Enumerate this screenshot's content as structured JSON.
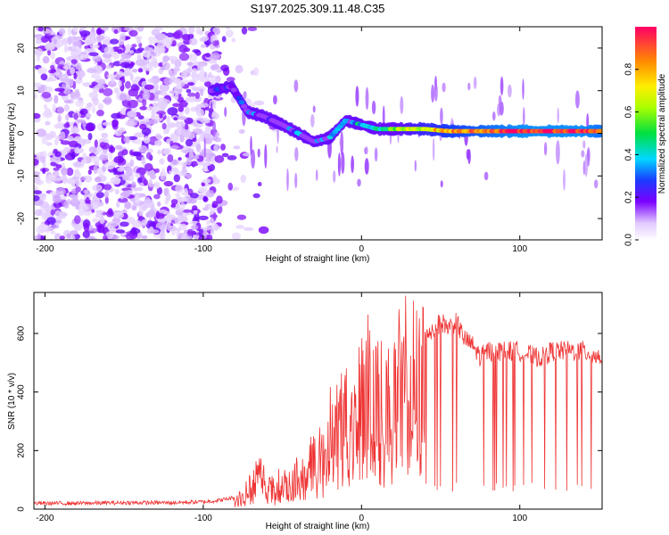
{
  "title": "S197.2025.309.11.48.C35",
  "chart_data": [
    {
      "type": "heatmap",
      "xlabel": "Height of straight line (km)",
      "ylabel": "Frequency (Hz)",
      "xlim": [
        -207,
        152
      ],
      "ylim": [
        -25,
        25
      ],
      "xticks": [
        -200,
        -100,
        0,
        100
      ],
      "yticks": [
        -20,
        -10,
        0,
        10,
        20
      ],
      "colorbar": {
        "label": "Normalized spectral amplitude",
        "range": [
          0.0,
          1.0
        ],
        "ticks": [
          0.0,
          0.2,
          0.4,
          0.6,
          0.8
        ]
      },
      "ridge": [
        {
          "x": -95,
          "freq": 10,
          "amp": 0.2
        },
        {
          "x": -82,
          "freq": 11,
          "amp": 0.25
        },
        {
          "x": -72,
          "freq": 5,
          "amp": 0.15
        },
        {
          "x": -62,
          "freq": 4,
          "amp": 0.2
        },
        {
          "x": -50,
          "freq": 2,
          "amp": 0.15
        },
        {
          "x": -40,
          "freq": 0,
          "amp": 0.2
        },
        {
          "x": -30,
          "freq": -2,
          "amp": 0.2
        },
        {
          "x": -20,
          "freq": -1,
          "amp": 0.25
        },
        {
          "x": -10,
          "freq": 3,
          "amp": 0.35
        },
        {
          "x": 0,
          "freq": 2,
          "amp": 0.3
        },
        {
          "x": 10,
          "freq": 1,
          "amp": 0.4
        },
        {
          "x": 25,
          "freq": 1,
          "amp": 0.6
        },
        {
          "x": 40,
          "freq": 1,
          "amp": 0.7
        },
        {
          "x": 55,
          "freq": 0.5,
          "amp": 0.8
        },
        {
          "x": 70,
          "freq": 0.5,
          "amp": 0.85
        },
        {
          "x": 85,
          "freq": 0.5,
          "amp": 0.9
        },
        {
          "x": 100,
          "freq": 0.5,
          "amp": 0.95
        },
        {
          "x": 120,
          "freq": 0.5,
          "amp": 0.95
        },
        {
          "x": 140,
          "freq": 0.5,
          "amp": 0.95
        },
        {
          "x": 150,
          "freq": 0.5,
          "amp": 0.9
        }
      ]
    },
    {
      "type": "line",
      "xlabel": "Height of straight line (km)",
      "ylabel": "SNR (10 * v/v)",
      "xlim": [
        -207,
        152
      ],
      "ylim": [
        0,
        740
      ],
      "xticks": [
        -200,
        -100,
        0,
        100
      ],
      "yticks": [
        0,
        200,
        400,
        600
      ],
      "series": [
        {
          "name": "SNR",
          "color": "#ee3333",
          "x": [
            -207,
            -180,
            -150,
            -120,
            -100,
            -90,
            -80,
            -75,
            -70,
            -65,
            -60,
            -55,
            -50,
            -45,
            -40,
            -35,
            -30,
            -25,
            -20,
            -18,
            -15,
            -12,
            -10,
            -5,
            0,
            5,
            10,
            15,
            20,
            25,
            30,
            35,
            40,
            45,
            50,
            55,
            60,
            65,
            70,
            75,
            80,
            90,
            100,
            110,
            115,
            120,
            130,
            140,
            150
          ],
          "y": [
            20,
            20,
            22,
            22,
            25,
            30,
            40,
            60,
            100,
            150,
            120,
            80,
            140,
            100,
            160,
            120,
            260,
            200,
            330,
            380,
            450,
            350,
            420,
            300,
            500,
            520,
            480,
            440,
            520,
            560,
            580,
            560,
            600,
            610,
            640,
            620,
            640,
            580,
            560,
            520,
            540,
            540,
            540,
            520,
            520,
            540,
            540,
            540,
            520
          ]
        }
      ]
    }
  ]
}
